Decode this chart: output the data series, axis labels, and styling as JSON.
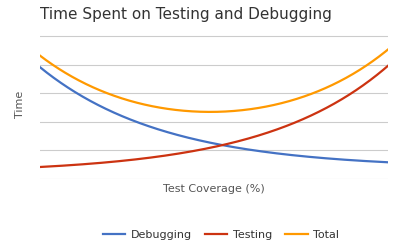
{
  "title": "Time Spent on Testing and Debugging",
  "xlabel": "Test Coverage (%)",
  "ylabel": "Time",
  "background_color": "#ffffff",
  "grid_color": "#cccccc",
  "line_debugging_color": "#4472c4",
  "line_testing_color": "#cc3311",
  "line_total_color": "#ff9900",
  "legend_labels": [
    "Debugging",
    "Testing",
    "Total"
  ],
  "ylim": [
    0,
    1.15
  ],
  "title_fontsize": 11,
  "label_fontsize": 8,
  "legend_fontsize": 8,
  "line_width": 1.6
}
